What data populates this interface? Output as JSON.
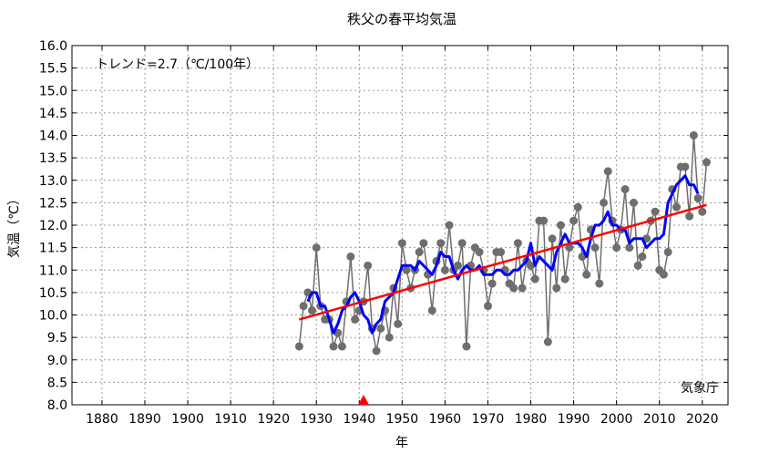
{
  "chart_data": {
    "type": "line",
    "title": "秩父の春平均気温",
    "xlabel": "年",
    "ylabel": "気温（℃）",
    "annotation_trend": "トレンド=2.7（℃/100年）",
    "source_label": "気象庁",
    "xlim": [
      1873,
      2026
    ],
    "ylim": [
      8.0,
      16.0
    ],
    "x_ticks": [
      1880,
      1890,
      1900,
      1910,
      1920,
      1930,
      1940,
      1950,
      1960,
      1970,
      1980,
      1990,
      2000,
      2010,
      2020
    ],
    "y_ticks": [
      8.0,
      8.5,
      9.0,
      9.5,
      10.0,
      10.5,
      11.0,
      11.5,
      12.0,
      12.5,
      13.0,
      13.5,
      14.0,
      14.5,
      15.0,
      15.5,
      16.0
    ],
    "grid": true,
    "marker_year": 1941,
    "colors": {
      "points": "#6e6e6e",
      "moving_average": "#0000ff",
      "trend": "#ff0000",
      "marker": "#ff0000"
    },
    "series": [
      {
        "role": "annual",
        "x": [
          1926,
          1927,
          1928,
          1929,
          1930,
          1931,
          1932,
          1933,
          1934,
          1935,
          1936,
          1937,
          1938,
          1939,
          1940,
          1941,
          1942,
          1943,
          1944,
          1945,
          1946,
          1947,
          1948,
          1949,
          1950,
          1951,
          1952,
          1953,
          1954,
          1955,
          1956,
          1957,
          1958,
          1959,
          1960,
          1961,
          1962,
          1963,
          1964,
          1965,
          1966,
          1967,
          1968,
          1969,
          1970,
          1971,
          1972,
          1973,
          1974,
          1975,
          1976,
          1977,
          1978,
          1979,
          1980,
          1981,
          1982,
          1983,
          1984,
          1985,
          1986,
          1987,
          1988,
          1989,
          1990,
          1991,
          1992,
          1993,
          1994,
          1995,
          1996,
          1997,
          1998,
          1999,
          2000,
          2001,
          2002,
          2003,
          2004,
          2005,
          2006,
          2007,
          2008,
          2009,
          2010,
          2011,
          2012,
          2013,
          2014,
          2015,
          2016,
          2017,
          2018,
          2019,
          2020,
          2021
        ],
        "values": [
          9.3,
          10.2,
          10.5,
          10.1,
          11.5,
          10.2,
          9.9,
          9.9,
          9.3,
          9.6,
          9.3,
          10.3,
          11.3,
          9.9,
          10.1,
          10.3,
          11.1,
          9.7,
          9.2,
          9.7,
          10.1,
          9.5,
          10.6,
          9.8,
          11.6,
          11.0,
          10.6,
          11.0,
          11.4,
          11.6,
          10.9,
          10.1,
          11.2,
          11.6,
          11.0,
          12.0,
          11.0,
          11.1,
          11.6,
          9.3,
          11.1,
          11.5,
          11.4,
          11.0,
          10.2,
          10.7,
          11.4,
          11.4,
          11.0,
          10.7,
          10.6,
          11.6,
          10.6,
          11.2,
          11.1,
          10.8,
          12.1,
          12.1,
          9.4,
          11.7,
          10.6,
          12.0,
          10.8,
          11.5,
          12.1,
          12.4,
          11.3,
          10.9,
          11.9,
          11.5,
          10.7,
          12.5,
          13.2,
          12.1,
          11.5,
          11.9,
          12.8,
          11.5,
          12.5,
          11.1,
          11.3,
          11.7,
          12.1,
          12.3,
          11.0,
          10.9,
          11.4,
          12.8,
          12.4,
          13.3,
          13.3,
          12.2,
          14.0,
          12.6,
          12.3,
          13.4
        ]
      },
      {
        "role": "moving_average",
        "x": [
          1928,
          1929,
          1930,
          1931,
          1932,
          1933,
          1934,
          1935,
          1936,
          1937,
          1938,
          1939,
          1940,
          1941,
          1942,
          1943,
          1944,
          1945,
          1946,
          1947,
          1948,
          1949,
          1950,
          1951,
          1952,
          1953,
          1954,
          1955,
          1956,
          1957,
          1958,
          1959,
          1960,
          1961,
          1962,
          1963,
          1964,
          1965,
          1966,
          1967,
          1968,
          1969,
          1970,
          1971,
          1972,
          1973,
          1974,
          1975,
          1976,
          1977,
          1978,
          1979,
          1980,
          1981,
          1982,
          1983,
          1984,
          1985,
          1986,
          1987,
          1988,
          1989,
          1990,
          1991,
          1992,
          1993,
          1994,
          1995,
          1996,
          1997,
          1998,
          1999,
          2000,
          2001,
          2002,
          2003,
          2004,
          2005,
          2006,
          2007,
          2008,
          2009,
          2010,
          2011,
          2012,
          2013,
          2014,
          2015,
          2016,
          2017,
          2018,
          2019
        ],
        "values": [
          10.3,
          10.5,
          10.5,
          10.2,
          10.2,
          9.9,
          9.6,
          9.8,
          10.1,
          10.2,
          10.4,
          10.5,
          10.3,
          10.0,
          9.9,
          9.6,
          9.8,
          9.9,
          10.3,
          10.4,
          10.5,
          10.8,
          11.1,
          11.1,
          11.1,
          11.0,
          11.2,
          11.1,
          11.0,
          10.9,
          11.1,
          11.4,
          11.3,
          11.3,
          11.0,
          10.8,
          11.0,
          11.1,
          11.0,
          11.0,
          11.1,
          10.9,
          10.9,
          10.9,
          11.0,
          11.0,
          10.9,
          10.9,
          11.0,
          11.0,
          11.1,
          11.2,
          11.6,
          11.1,
          11.3,
          11.2,
          11.1,
          11.0,
          11.4,
          11.6,
          11.8,
          11.6,
          11.6,
          11.6,
          11.5,
          11.3,
          11.7,
          12.0,
          12.0,
          12.1,
          12.3,
          12.0,
          12.0,
          11.9,
          11.9,
          11.6,
          11.7,
          11.7,
          11.7,
          11.5,
          11.6,
          11.7,
          11.7,
          11.8,
          12.5,
          12.7,
          12.9,
          13.0,
          13.1,
          12.9,
          12.9,
          12.7
        ]
      },
      {
        "role": "trend",
        "x": [
          1926,
          2021
        ],
        "values": [
          9.9,
          12.45
        ]
      }
    ]
  }
}
